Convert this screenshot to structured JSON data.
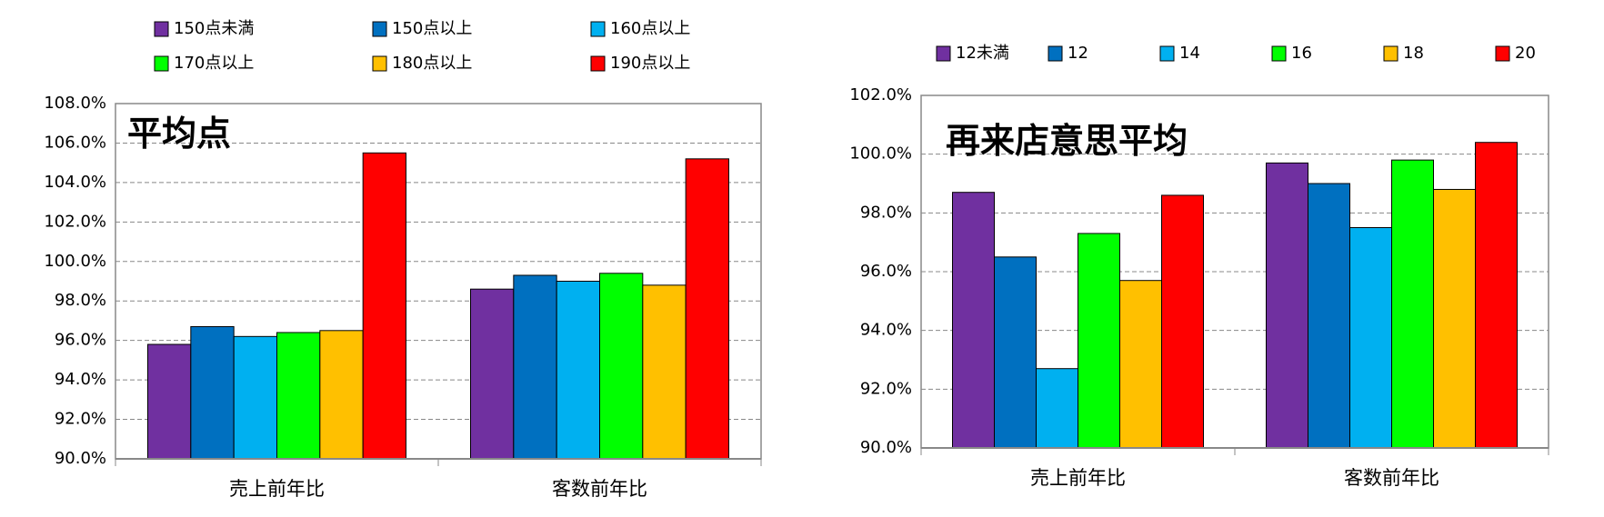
{
  "chart_data": [
    {
      "type": "bar",
      "title": "平均点",
      "categories": [
        "売上前年比",
        "客数前年比"
      ],
      "series": [
        {
          "name": "150点未満",
          "color": "#7030a0",
          "values": [
            95.8,
            98.6
          ]
        },
        {
          "name": "150点以上",
          "color": "#0070c0",
          "values": [
            96.7,
            99.3
          ]
        },
        {
          "name": "160点以上",
          "color": "#00b0f0",
          "values": [
            96.2,
            99.0
          ]
        },
        {
          "name": "170点以上",
          "color": "#00ff00",
          "values": [
            96.4,
            99.4
          ]
        },
        {
          "name": "180点以上",
          "color": "#ffc000",
          "values": [
            96.5,
            98.8
          ]
        },
        {
          "name": "190点以上",
          "color": "#ff0000",
          "values": [
            105.5,
            105.2
          ]
        }
      ],
      "ylim": [
        90,
        108
      ],
      "yticks": [
        {
          "value": 90,
          "label": "90.0%"
        },
        {
          "value": 92,
          "label": "92.0%"
        },
        {
          "value": 94,
          "label": "94.0%"
        },
        {
          "value": 96,
          "label": "96.0%"
        },
        {
          "value": 98,
          "label": "98.0%"
        },
        {
          "value": 100,
          "label": "100.0%"
        },
        {
          "value": 102,
          "label": "102.0%"
        },
        {
          "value": 104,
          "label": "104.0%"
        },
        {
          "value": 106,
          "label": "106.0%"
        },
        {
          "value": 108,
          "label": "108.0%"
        }
      ],
      "grid": true
    },
    {
      "type": "bar",
      "title": "再来店意思平均",
      "categories": [
        "売上前年比",
        "客数前年比"
      ],
      "series": [
        {
          "name": "12未満",
          "color": "#7030a0",
          "values": [
            98.7,
            99.7
          ]
        },
        {
          "name": "12",
          "color": "#0070c0",
          "values": [
            96.5,
            99.0
          ]
        },
        {
          "name": "14",
          "color": "#00b0f0",
          "values": [
            92.7,
            97.5
          ]
        },
        {
          "name": "16",
          "color": "#00ff00",
          "values": [
            97.3,
            99.8
          ]
        },
        {
          "name": "18",
          "color": "#ffc000",
          "values": [
            95.7,
            98.8
          ]
        },
        {
          "name": "20",
          "color": "#ff0000",
          "values": [
            98.6,
            100.4
          ]
        }
      ],
      "ylim": [
        90,
        102
      ],
      "yticks": [
        {
          "value": 90,
          "label": "90.0%"
        },
        {
          "value": 92,
          "label": "92.0%"
        },
        {
          "value": 94,
          "label": "94.0%"
        },
        {
          "value": 96,
          "label": "96.0%"
        },
        {
          "value": 98,
          "label": "98.0%"
        },
        {
          "value": 100,
          "label": "100.0%"
        },
        {
          "value": 102,
          "label": "102.0%"
        }
      ],
      "grid": true
    }
  ]
}
